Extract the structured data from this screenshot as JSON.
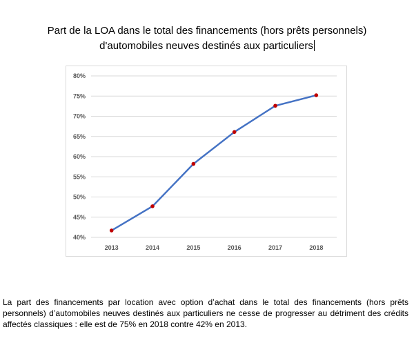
{
  "title": {
    "line1": "Part de la LOA dans le total des financements (hors prêts personnels)",
    "line2": "d'automobiles neuves destinés aux particuliers"
  },
  "caption": "La part des financements par location avec option d’achat dans le total des financements (hors prêts personnels) d’automobiles neuves destinés aux particuliers ne cesse de progresser au détriment des crédits affectés classiques : elle est de 75% en 2018 contre 42% en 2013.",
  "chart_data": {
    "type": "line",
    "categories": [
      "2013",
      "2014",
      "2015",
      "2016",
      "2017",
      "2018"
    ],
    "series": [
      {
        "values": [
          41.7,
          47.7,
          58.2,
          66.1,
          72.6,
          75.2
        ]
      }
    ],
    "yticks": [
      "40%",
      "45%",
      "50%",
      "55%",
      "60%",
      "65%",
      "70%",
      "75%",
      "80%"
    ],
    "ylim": [
      40,
      80
    ],
    "grid": true,
    "colors": {
      "line": "#4472c4",
      "marker": "#c00000",
      "grid": "#d9d9d9"
    }
  }
}
